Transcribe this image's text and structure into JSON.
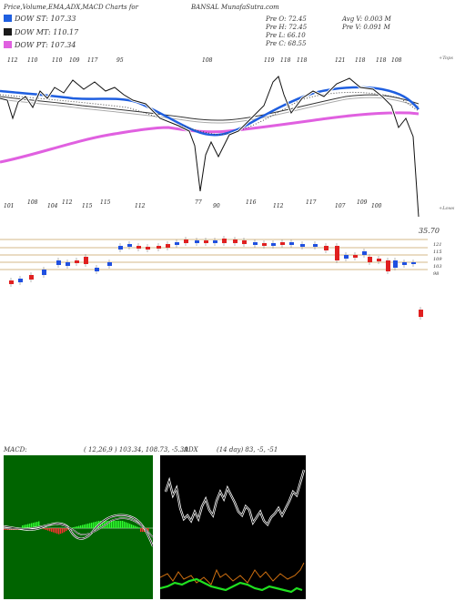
{
  "header": {
    "title_left": "Price,Volume,EMA,ADX,MACD Charts for",
    "title_right": "BANSAL MunafaSutra.com"
  },
  "legend": [
    {
      "label": "DOW ST: 107.33",
      "color": "#1f5fe0"
    },
    {
      "label": "DOW MT: 110.17",
      "color": "#1a1a1a"
    },
    {
      "label": "DOW PT: 107.34",
      "color": "#e060e0"
    }
  ],
  "ohlc": {
    "col1": [
      "Pre O: 72.45",
      "Pre H: 72.45",
      "Pre L: 66.10",
      "Pre C: 68.55"
    ],
    "col2": [
      "Avg V: 0.003 M",
      "Pre V: 0.091 M"
    ]
  },
  "side_labels": {
    "top": "+Tops",
    "bottom": "+Lows"
  },
  "price_text": "35.70",
  "chart_data": [
    {
      "type": "line",
      "name": "price-ema",
      "top_labels": [
        "112",
        "110",
        "110",
        "109",
        "117",
        "95",
        "108",
        "119",
        "118",
        "118",
        "121",
        "118",
        "118",
        "108"
      ],
      "bottom_labels": [
        "101",
        "108",
        "104",
        "112",
        "115",
        "115",
        "112",
        "77",
        "90",
        "116",
        "112",
        "117",
        "107",
        "109",
        "100"
      ],
      "series": [
        {
          "name": "DOW ST",
          "color": "#1f5fe0"
        },
        {
          "name": "DOW MT",
          "color": "#1a1a1a"
        },
        {
          "name": "DOW PT",
          "color": "#e060e0"
        }
      ]
    },
    {
      "type": "bar",
      "name": "price-levels",
      "levels": [
        "121",
        "115",
        "109",
        "103",
        "98"
      ]
    },
    {
      "type": "line",
      "name": "macd",
      "title": "MACD:",
      "params": "( 12,26,9 ) 103.34, 108.73, -5.39"
    },
    {
      "type": "line",
      "name": "adx",
      "title": "ADX",
      "params": "(14 day) 83, -5, -51"
    }
  ]
}
